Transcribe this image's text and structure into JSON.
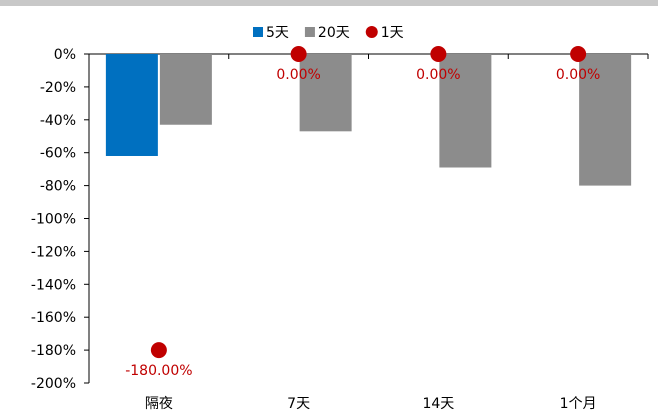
{
  "chart_data": {
    "type": "bar",
    "categories": [
      "隔夜",
      "7天",
      "14天",
      "1个月"
    ],
    "series": [
      {
        "name": "5天",
        "kind": "bar",
        "color": "#0070c0",
        "values": [
          -62,
          null,
          null,
          null
        ]
      },
      {
        "name": "20天",
        "kind": "bar",
        "color": "#8c8c8c",
        "values": [
          -43,
          -47,
          -69,
          -80
        ]
      },
      {
        "name": "1天",
        "kind": "scatter",
        "color": "#c00000",
        "values": [
          -180,
          0,
          0,
          0
        ],
        "data_labels": [
          "-180.00%",
          "0.00%",
          "0.00%",
          "0.00%"
        ]
      }
    ],
    "ylim": [
      -200,
      0
    ],
    "yticks": [
      "0%",
      "-20%",
      "-40%",
      "-60%",
      "-80%",
      "-100%",
      "-120%",
      "-140%",
      "-160%",
      "-180%",
      "-200%"
    ],
    "ytick_values": [
      0,
      -20,
      -40,
      -60,
      -80,
      -100,
      -120,
      -140,
      -160,
      -180,
      -200
    ],
    "legend_position": "top-center",
    "grid": false
  }
}
